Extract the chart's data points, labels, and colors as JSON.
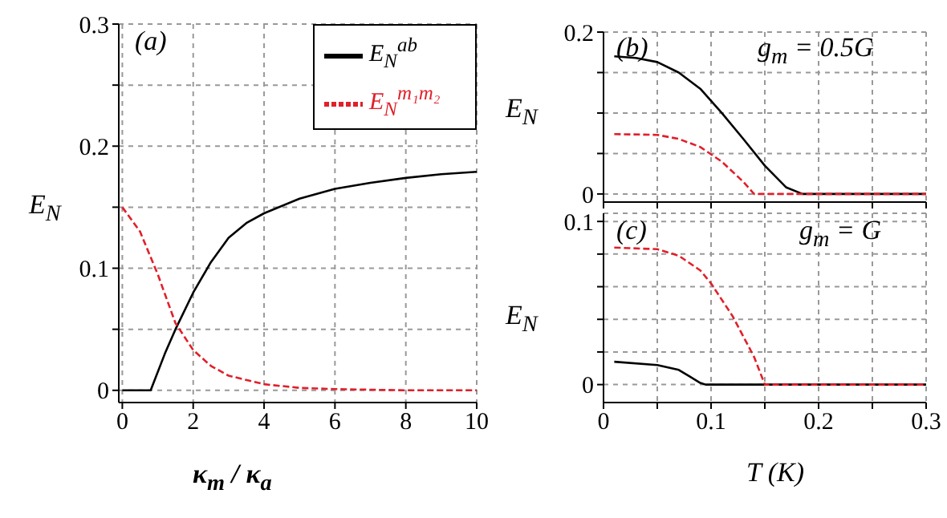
{
  "chart_data": [
    {
      "type": "line",
      "xlabel": "κ$_{m}$ / κ$_{a}$",
      "ylabel": "E$_{N}$",
      "annotations": [
        "(a)"
      ],
      "legend": "top right",
      "grid": true,
      "marker": "none",
      "xlim": [
        -0.1,
        10
      ],
      "xticks": [
        0,
        2,
        4,
        6,
        8,
        10
      ],
      "ylim": [
        -0.01,
        0.3
      ],
      "yticks": [
        0,
        {
          "value": 0.05,
          "label": null
        },
        0.1,
        {
          "value": 0.15,
          "label": null
        },
        0.2,
        {
          "value": 0.25,
          "label": null
        },
        0.3
      ],
      "series": [
        {
          "name": "E$_{N}$$^{ab}$",
          "color": "#000000",
          "line_style": "solid",
          "x": [
            0,
            0.8,
            1.2,
            1.5,
            2,
            2.5,
            3,
            3.5,
            4,
            5,
            6,
            7,
            8,
            9,
            10
          ],
          "values": [
            0,
            0,
            0.03,
            0.05,
            0.08,
            0.105,
            0.125,
            0.137,
            0.145,
            0.157,
            0.165,
            0.17,
            0.174,
            0.177,
            0.179
          ]
        },
        {
          "name": "E$_{N}$$^{m₁m₂}$",
          "color": "#e0202a",
          "line_style": "dashed",
          "x": [
            0,
            0.5,
            1,
            1.5,
            2,
            2.5,
            3,
            4,
            5,
            6,
            8,
            10
          ],
          "values": [
            0.15,
            0.13,
            0.095,
            0.055,
            0.033,
            0.02,
            0.012,
            0.005,
            0.002,
            0.001,
            0,
            0
          ]
        }
      ]
    },
    {
      "type": "line",
      "ylabel": "E$_{N}$",
      "annotations": [
        "(b)",
        "g$_{m}$ = 0.5G"
      ],
      "grid": true,
      "marker": "none",
      "tick_labels": "y",
      "xlim": [
        0,
        0.3
      ],
      "xticks": [
        {
          "value": 0,
          "label": null
        },
        {
          "value": 0.05,
          "label": null
        },
        {
          "value": 0.1,
          "label": null
        },
        {
          "value": 0.15,
          "label": null
        },
        {
          "value": 0.2,
          "label": null
        },
        {
          "value": 0.25,
          "label": null
        },
        {
          "value": 0.3,
          "label": null
        }
      ],
      "ylim": [
        -0.01,
        0.2
      ],
      "yticks": [
        0,
        {
          "value": 0.05,
          "label": null
        },
        {
          "value": 0.1,
          "label": null
        },
        {
          "value": 0.15,
          "label": null
        },
        0.2
      ],
      "series": [
        {
          "color": "#000000",
          "line_style": "solid",
          "x": [
            0.01,
            0.03,
            0.05,
            0.07,
            0.09,
            0.11,
            0.13,
            0.15,
            0.17,
            0.185,
            0.3
          ],
          "values": [
            0.17,
            0.168,
            0.163,
            0.15,
            0.13,
            0.1,
            0.068,
            0.035,
            0.008,
            0,
            0
          ]
        },
        {
          "color": "#e0202a",
          "line_style": "dashed",
          "x": [
            0.01,
            0.05,
            0.07,
            0.09,
            0.11,
            0.13,
            0.14,
            0.3
          ],
          "values": [
            0.074,
            0.073,
            0.068,
            0.058,
            0.04,
            0.015,
            0,
            0
          ]
        }
      ]
    },
    {
      "type": "line",
      "xlabel": "T (K)",
      "ylabel": "E$_{N}$",
      "annotations": [
        "(c)",
        "g$_{m}$ = G"
      ],
      "grid": true,
      "marker": "none",
      "xlim": [
        0,
        0.3
      ],
      "xticks": [
        0,
        {
          "value": 0.05,
          "label": null
        },
        0.1,
        {
          "value": 0.15,
          "label": null
        },
        0.2,
        {
          "value": 0.25,
          "label": null
        },
        0.3
      ],
      "ylim": [
        -0.011,
        0.105
      ],
      "yticks": [
        0,
        {
          "value": 0.02,
          "label": null
        },
        {
          "value": 0.04,
          "label": null
        },
        {
          "value": 0.06,
          "label": null
        },
        {
          "value": 0.08,
          "label": null
        },
        0.1
      ],
      "series": [
        {
          "color": "#000000",
          "line_style": "solid",
          "x": [
            0.01,
            0.05,
            0.07,
            0.08,
            0.09,
            0.095,
            0.3
          ],
          "values": [
            0.014,
            0.012,
            0.009,
            0.005,
            0.001,
            0,
            0
          ]
        },
        {
          "color": "#e0202a",
          "line_style": "dashed",
          "x": [
            0.01,
            0.05,
            0.07,
            0.09,
            0.1,
            0.12,
            0.14,
            0.15,
            0.3
          ],
          "values": [
            0.084,
            0.083,
            0.079,
            0.07,
            0.062,
            0.042,
            0.017,
            0,
            0
          ]
        }
      ]
    }
  ]
}
